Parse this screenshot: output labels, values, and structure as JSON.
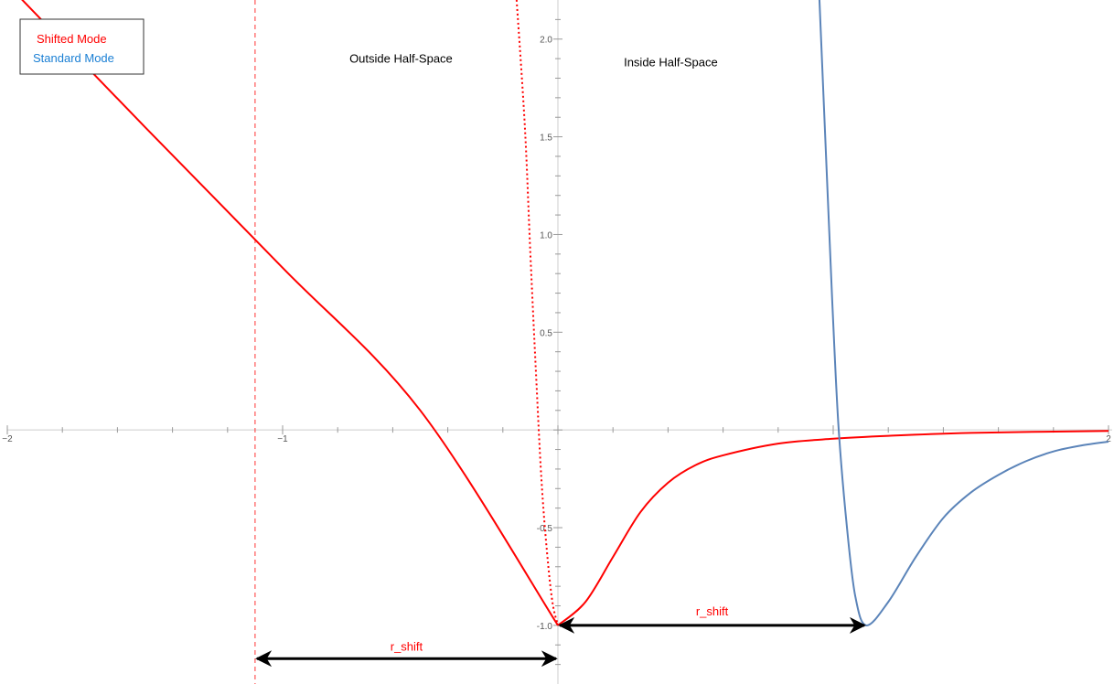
{
  "chart_data": {
    "type": "line",
    "xlim": [
      -2,
      2
    ],
    "ylim": [
      -1.3,
      2.2
    ],
    "x_ticks": [
      {
        "value": -2,
        "label": "−2"
      },
      {
        "value": -1,
        "label": "−1"
      },
      {
        "value": 2,
        "label": "2"
      }
    ],
    "y_ticks": [
      {
        "value": 2.0,
        "label": "2.0"
      },
      {
        "value": 1.5,
        "label": "1.5"
      },
      {
        "value": 1.0,
        "label": "1.0"
      },
      {
        "value": 0.5,
        "label": "0.5"
      },
      {
        "value": -0.5,
        "label": "-0.5"
      },
      {
        "value": -1.0,
        "label": "-1.0"
      }
    ],
    "legend": {
      "placement": "top-left",
      "entries": [
        {
          "label": "Shifted Mode",
          "color": "#ff0000"
        },
        {
          "label": "Standard Mode",
          "color": "#1a7fd4"
        }
      ]
    },
    "annotations": [
      {
        "text": "Outside Half-Space",
        "x": -0.57,
        "y": 1.88
      },
      {
        "text": "Inside Half-Space",
        "x": 0.41,
        "y": 1.86
      }
    ],
    "shift_arrows": [
      {
        "label": "r_shift",
        "from": -1.1,
        "to": 0.0,
        "y": -1.17,
        "label_y": -1.13
      },
      {
        "label": "r_shift",
        "from": 0.0,
        "to": 1.12,
        "y": -1.0,
        "label_y": -0.95
      }
    ],
    "vertical_line": {
      "x": -1.1,
      "style": "dashed",
      "color": "#ff3333"
    },
    "series": [
      {
        "name": "Shifted Mode",
        "color": "#ff0000",
        "style": "solid",
        "x": [
          -2.0,
          -1.5,
          -1.0,
          -0.5,
          0.0
        ],
        "y": [
          2.28,
          1.55,
          0.83,
          0.1,
          -1.0
        ]
      },
      {
        "color": "#ff0000",
        "style": "dotted",
        "x": [
          -0.15,
          -0.12,
          -0.1,
          -0.08,
          -0.06,
          -0.04,
          -0.02,
          0.0
        ],
        "y": [
          2.2,
          1.55,
          0.9,
          0.3,
          -0.25,
          -0.62,
          -0.88,
          -1.0
        ]
      },
      {
        "color": "#ff0000",
        "style": "solid",
        "x": [
          0.0,
          0.1,
          0.2,
          0.3,
          0.4,
          0.5,
          0.6,
          0.8,
          1.0,
          1.2,
          1.5,
          2.0
        ],
        "y": [
          -1.0,
          -0.88,
          -0.65,
          -0.42,
          -0.27,
          -0.18,
          -0.13,
          -0.07,
          -0.045,
          -0.03,
          -0.015,
          -0.005
        ]
      },
      {
        "name": "Standard Mode",
        "color": "#5b84b9",
        "style": "solid",
        "x": [
          0.95,
          0.98,
          1.0,
          1.02,
          1.05,
          1.08,
          1.12,
          1.2,
          1.3,
          1.4,
          1.5,
          1.6,
          1.7,
          1.8,
          1.9,
          2.0
        ],
        "y": [
          2.2,
          1.2,
          0.55,
          0.0,
          -0.5,
          -0.85,
          -1.0,
          -0.88,
          -0.65,
          -0.45,
          -0.32,
          -0.23,
          -0.16,
          -0.11,
          -0.08,
          -0.06
        ]
      }
    ]
  }
}
